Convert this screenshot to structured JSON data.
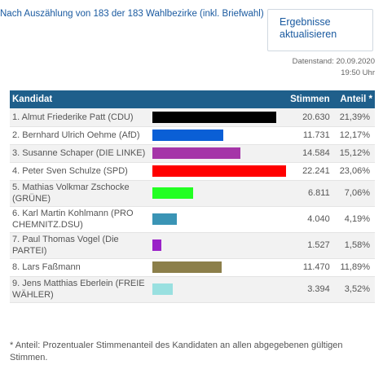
{
  "header": {
    "status": "Nach Auszählung von 183 der 183 Wahlbezirke (inkl. Briefwahl)",
    "refresh_label": "Ergebnisse aktualisieren",
    "stand_date": "Datenstand: 20.09.2020",
    "stand_time": "19:50 Uhr"
  },
  "table": {
    "col_candidate": "Kandidat",
    "col_votes": "Stimmen",
    "col_share": "Anteil *",
    "rows": [
      {
        "name": "1. Almut Friederike Patt (CDU)",
        "votes": "20.630",
        "share": "21,39%",
        "share_value": 21.39,
        "color": "#000000"
      },
      {
        "name": "2. Bernhard Ulrich Oehme (AfD)",
        "votes": "11.731",
        "share": "12,17%",
        "share_value": 12.17,
        "color": "#0a5fd6"
      },
      {
        "name": "3. Susanne Schaper (DIE LINKE)",
        "votes": "14.584",
        "share": "15,12%",
        "share_value": 15.12,
        "color": "#a535a8"
      },
      {
        "name": "4. Peter Sven Schulze (SPD)",
        "votes": "22.241",
        "share": "23,06%",
        "share_value": 23.06,
        "color": "#ff0000"
      },
      {
        "name": "5. Mathias Volkmar Zschocke (GRÜNE)",
        "votes": "6.811",
        "share": "7,06%",
        "share_value": 7.06,
        "color": "#22ff22"
      },
      {
        "name": "6. Karl Martin Kohlmann (PRO CHEMNITZ.DSU)",
        "votes": "4.040",
        "share": "4,19%",
        "share_value": 4.19,
        "color": "#3a94b5"
      },
      {
        "name": "7. Paul Thomas Vogel (Die PARTEI)",
        "votes": "1.527",
        "share": "1,58%",
        "share_value": 1.58,
        "color": "#9a22c8"
      },
      {
        "name": "8. Lars Faßmann",
        "votes": "11.470",
        "share": "11,89%",
        "share_value": 11.89,
        "color": "#8c7f4a"
      },
      {
        "name": "9. Jens Matthias Eberlein (FREIE WÄHLER)",
        "votes": "3.394",
        "share": "3,52%",
        "share_value": 3.52,
        "color": "#99e0e0"
      }
    ]
  },
  "footnote": "* Anteil: Prozentualer Stimmenanteil des Kandidaten an allen abgegebenen gültigen Stimmen."
}
